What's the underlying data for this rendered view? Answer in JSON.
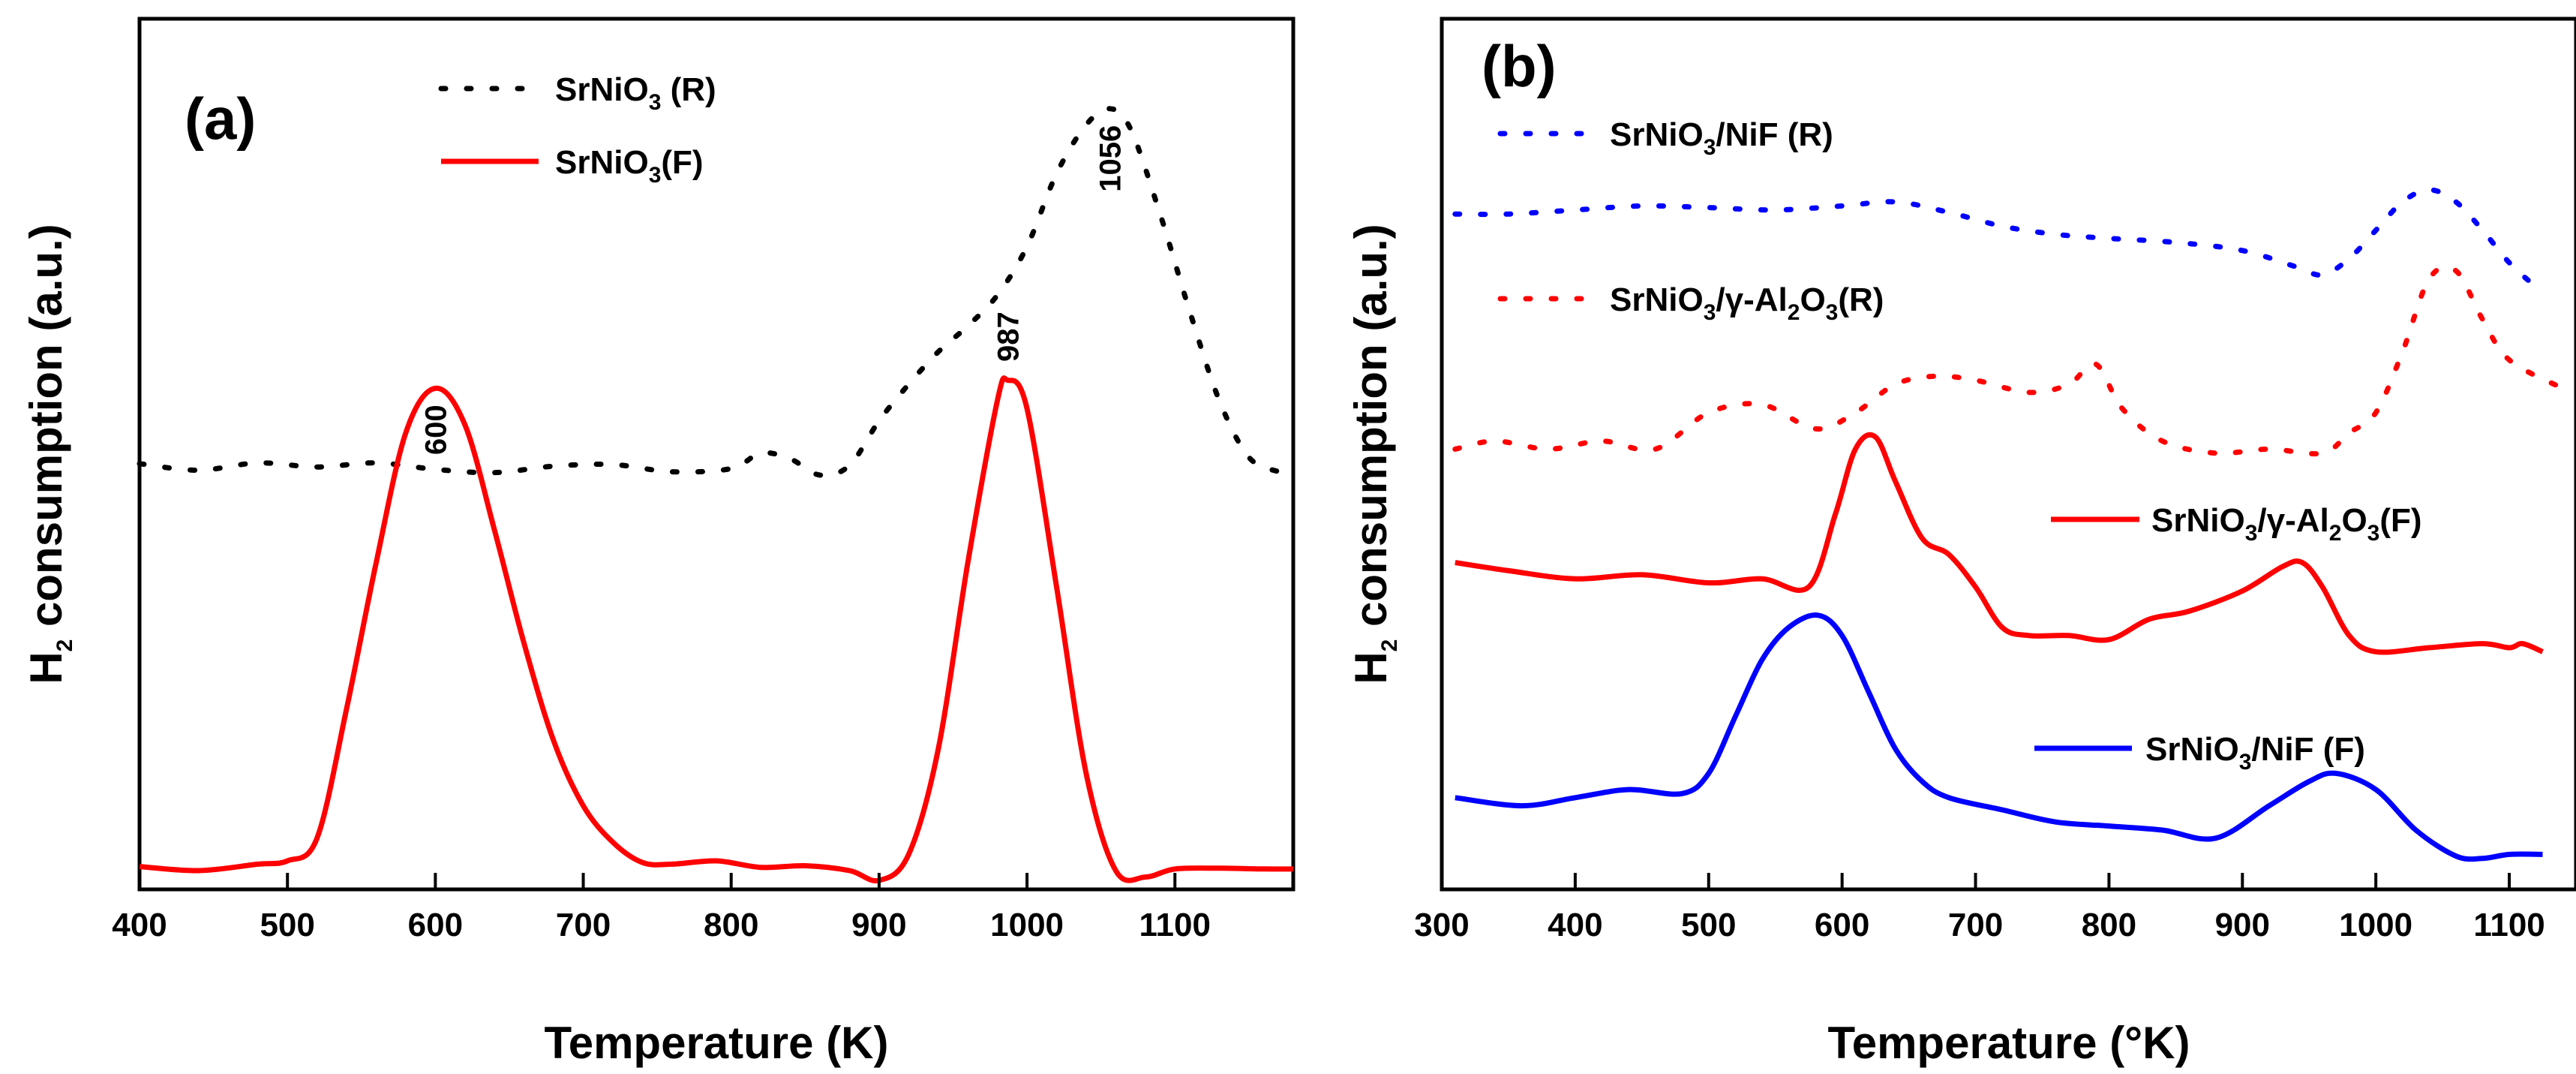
{
  "chart_data": [
    {
      "panel": "(a)",
      "type": "line",
      "xlabel": "Temperature (K)",
      "ylabel": {
        "base": "H",
        "sub": "2",
        "rest": " consumption (a.u.)"
      },
      "xlim": [
        400,
        1180
      ],
      "xticks": [
        400,
        500,
        600,
        700,
        800,
        900,
        1000,
        1100
      ],
      "ylim": [
        0,
        1
      ],
      "y_ticks_shown": false,
      "legend_position": "top-center",
      "series": [
        {
          "name": "SrNiO3 (R)",
          "legend": {
            "base": "SrNiO",
            "sub": "3",
            "rest": " (R)"
          },
          "color": "#000000",
          "style": "dotted",
          "x": [
            400,
            440,
            480,
            520,
            560,
            600,
            640,
            680,
            720,
            760,
            800,
            820,
            840,
            860,
            880,
            900,
            920,
            940,
            960,
            980,
            1000,
            1020,
            1040,
            1056,
            1070,
            1090,
            1110,
            1130,
            1150,
            1170
          ],
          "y": [
            0.502,
            0.494,
            0.503,
            0.498,
            0.503,
            0.495,
            0.491,
            0.499,
            0.501,
            0.492,
            0.496,
            0.515,
            0.508,
            0.488,
            0.5,
            0.555,
            0.6,
            0.64,
            0.672,
            0.71,
            0.77,
            0.86,
            0.92,
            0.94,
            0.915,
            0.81,
            0.69,
            0.58,
            0.51,
            0.492
          ]
        },
        {
          "name": "SrNiO3(F)",
          "legend": {
            "base": "SrNiO",
            "sub": "3",
            "rest": "(F)"
          },
          "color": "#ff0000",
          "style": "solid",
          "x": [
            400,
            440,
            480,
            500,
            520,
            540,
            560,
            580,
            600,
            620,
            640,
            660,
            680,
            700,
            720,
            740,
            760,
            790,
            820,
            850,
            880,
            900,
            920,
            940,
            960,
            980,
            987,
            1000,
            1020,
            1040,
            1060,
            1080,
            1100,
            1130,
            1160,
            1180
          ],
          "y": [
            0.005,
            0.0,
            0.008,
            0.012,
            0.04,
            0.2,
            0.38,
            0.54,
            0.595,
            0.55,
            0.42,
            0.28,
            0.16,
            0.08,
            0.035,
            0.01,
            0.008,
            0.012,
            0.004,
            0.006,
            0.0,
            -0.012,
            0.02,
            0.15,
            0.38,
            0.58,
            0.605,
            0.57,
            0.35,
            0.12,
            0.0,
            -0.008,
            0.002,
            0.003,
            0.002,
            0.002
          ]
        }
      ],
      "annotations": [
        {
          "text": "600",
          "x": 600
        },
        {
          "text": "987",
          "x": 987
        },
        {
          "text": "1056",
          "x": 1056
        }
      ]
    },
    {
      "panel": "(b)",
      "type": "line",
      "xlabel": "Temperature (°K)",
      "ylabel": {
        "base": "H",
        "sub": "2",
        "rest": " consumption (a.u.)"
      },
      "xlim": [
        300,
        1150
      ],
      "xticks": [
        300,
        400,
        500,
        600,
        700,
        800,
        900,
        1000,
        1100
      ],
      "ylim": [
        0,
        1
      ],
      "y_ticks_shown": false,
      "series": [
        {
          "name": "SrNiO3/NiF (R)",
          "legend": {
            "base": "SrNiO",
            "sub": "3",
            "rest": "/NiF (R)"
          },
          "color": "#0000ff",
          "style": "dotted",
          "x": [
            310,
            350,
            400,
            450,
            500,
            550,
            600,
            640,
            680,
            720,
            760,
            800,
            850,
            900,
            940,
            960,
            980,
            1000,
            1020,
            1040,
            1060,
            1080,
            1100,
            1120
          ],
          "y": [
            0.81,
            0.81,
            0.815,
            0.82,
            0.818,
            0.815,
            0.82,
            0.825,
            0.812,
            0.795,
            0.785,
            0.78,
            0.775,
            0.765,
            0.745,
            0.735,
            0.755,
            0.79,
            0.825,
            0.84,
            0.825,
            0.79,
            0.75,
            0.72
          ]
        },
        {
          "name": "SrNiO3/γ-Al2O3(R)",
          "legend": {
            "parts": [
              {
                "t": "SrNiO"
              },
              {
                "t": "3",
                "sub": true
              },
              {
                "t": "/γ-Al"
              },
              {
                "t": "2",
                "sub": true
              },
              {
                "t": "O"
              },
              {
                "t": "3",
                "sub": true
              },
              {
                "t": "(R)"
              }
            ]
          },
          "color": "#ff0000",
          "style": "dotted",
          "x": [
            310,
            340,
            380,
            420,
            460,
            500,
            540,
            580,
            610,
            640,
            670,
            700,
            740,
            770,
            790,
            810,
            840,
            880,
            920,
            960,
            980,
            1000,
            1020,
            1040,
            1060,
            1080,
            1100,
            1140
          ],
          "y": [
            0.52,
            0.53,
            0.52,
            0.53,
            0.52,
            0.565,
            0.575,
            0.545,
            0.565,
            0.6,
            0.61,
            0.605,
            0.59,
            0.6,
            0.625,
            0.57,
            0.53,
            0.515,
            0.52,
            0.515,
            0.54,
            0.565,
            0.64,
            0.73,
            0.74,
            0.68,
            0.63,
            0.595
          ]
        },
        {
          "name": "SrNiO3/γ-Al2O3(F)",
          "legend": {
            "parts": [
              {
                "t": "SrNiO"
              },
              {
                "t": "3",
                "sub": true
              },
              {
                "t": "/γ-Al"
              },
              {
                "t": "2",
                "sub": true
              },
              {
                "t": "O"
              },
              {
                "t": "3",
                "sub": true
              },
              {
                "t": "(F)"
              }
            ]
          },
          "color": "#ff0000",
          "style": "solid",
          "x": [
            310,
            350,
            400,
            450,
            500,
            540,
            575,
            595,
            610,
            625,
            640,
            660,
            680,
            700,
            720,
            740,
            770,
            800,
            830,
            860,
            900,
            930,
            945,
            960,
            980,
            1000,
            1040,
            1080,
            1100,
            1110,
            1125
          ],
          "y": [
            0.38,
            0.37,
            0.36,
            0.365,
            0.355,
            0.36,
            0.35,
            0.44,
            0.52,
            0.535,
            0.48,
            0.41,
            0.39,
            0.35,
            0.3,
            0.29,
            0.29,
            0.285,
            0.31,
            0.32,
            0.345,
            0.375,
            0.38,
            0.35,
            0.29,
            0.27,
            0.275,
            0.28,
            0.275,
            0.28,
            0.27
          ]
        },
        {
          "name": "SrNiO3/NiF (F)",
          "legend": {
            "base": "SrNiO",
            "sub": "3",
            "rest": "/NiF (F)"
          },
          "color": "#0000ff",
          "style": "solid",
          "x": [
            310,
            360,
            400,
            440,
            480,
            500,
            520,
            540,
            560,
            582,
            600,
            620,
            640,
            660,
            680,
            720,
            760,
            800,
            840,
            880,
            920,
            950,
            970,
            1000,
            1030,
            1060,
            1080,
            1100,
            1125
          ],
          "y": [
            0.09,
            0.08,
            0.09,
            0.1,
            0.095,
            0.12,
            0.19,
            0.26,
            0.3,
            0.315,
            0.29,
            0.22,
            0.15,
            0.11,
            0.09,
            0.075,
            0.06,
            0.055,
            0.05,
            0.04,
            0.08,
            0.11,
            0.12,
            0.1,
            0.05,
            0.018,
            0.015,
            0.02,
            0.02
          ]
        }
      ]
    }
  ]
}
